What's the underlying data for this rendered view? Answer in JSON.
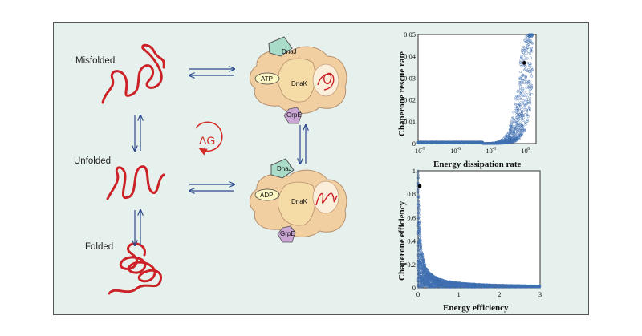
{
  "states": {
    "misfolded": "Misfolded",
    "unfolded": "Unfolded",
    "folded": "Folded"
  },
  "complex": {
    "dnaj": "DnaJ",
    "dnak": "DnaK",
    "grpe": "GrpE",
    "atp": "ATP",
    "adp": "ADP"
  },
  "delta_g": "ΔG",
  "chart_data": [
    {
      "type": "scatter",
      "xlabel": "Energy dissipation rate",
      "ylabel": "Chaperone rescue rate",
      "x_scale": "log",
      "xlim": [
        1e-09,
        10
      ],
      "ylim": [
        0,
        0.05
      ],
      "x_tick_labels": [
        "10",
        "10",
        "10",
        "10"
      ],
      "x_tick_exponents": [
        "-9",
        "-6",
        "-3",
        "0"
      ],
      "x_tick_values": [
        1e-09,
        1e-06,
        0.001,
        1
      ],
      "y_ticks": [
        "0",
        "0.01",
        "0.02",
        "0.03",
        "0.04",
        "0.05"
      ],
      "y_tick_values": [
        0,
        0.01,
        0.02,
        0.03,
        0.04,
        0.05
      ],
      "highlight_point": {
        "x": 1,
        "y": 0.037
      }
    },
    {
      "type": "scatter",
      "xlabel": "Energy efficiency",
      "ylabel": "Chaperone efficiency",
      "xlim": [
        0,
        3
      ],
      "ylim": [
        0,
        1
      ],
      "x_ticks": [
        "0",
        "1",
        "2",
        "3"
      ],
      "x_tick_values": [
        0,
        1,
        2,
        3
      ],
      "y_ticks": [
        "0",
        "0.2",
        "0.4",
        "0.6",
        "0.8",
        "1"
      ],
      "y_tick_values": [
        0,
        0.2,
        0.4,
        0.6,
        0.8,
        1
      ],
      "highlight_point": {
        "x": 0.04,
        "y": 0.87
      }
    }
  ]
}
